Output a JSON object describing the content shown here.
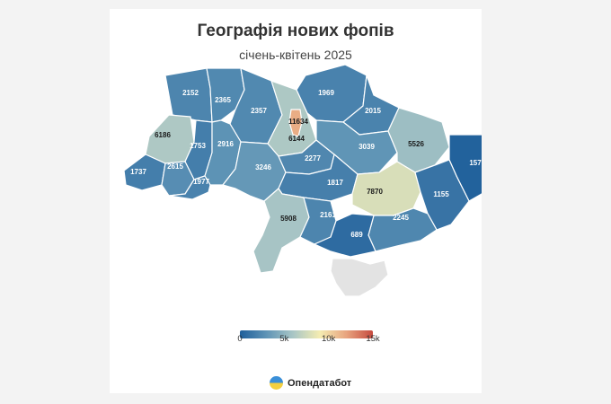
{
  "title": "Географія нових фопів",
  "subtitle": "січень-квітень 2025",
  "colors": {
    "scale": [
      "#1f5f9b",
      "#5f94b6",
      "#a9c6c5",
      "#f4ecb2",
      "#e8a47f",
      "#c64a3f"
    ],
    "no_data": "#e3e3e3",
    "background": "#f3f3f3"
  },
  "legend": {
    "min": 0,
    "max": 15000,
    "ticks": [
      {
        "value": 0,
        "label": "0"
      },
      {
        "value": 5000,
        "label": "5k"
      },
      {
        "value": 10000,
        "label": "10k"
      },
      {
        "value": 15000,
        "label": "15k"
      }
    ]
  },
  "regions": [
    {
      "id": "volyn",
      "value": 2152
    },
    {
      "id": "rivne",
      "value": 2365
    },
    {
      "id": "zhytomyr",
      "value": 2357
    },
    {
      "id": "kyiv-city",
      "value": 11634
    },
    {
      "id": "kyiv-oblast",
      "value": 6144
    },
    {
      "id": "chernihiv",
      "value": 1969
    },
    {
      "id": "sumy",
      "value": 2015
    },
    {
      "id": "lviv",
      "value": 6186
    },
    {
      "id": "ternopil",
      "value": 1753
    },
    {
      "id": "khmelnytskyi",
      "value": 2916
    },
    {
      "id": "vinnytsia",
      "value": 3246
    },
    {
      "id": "cherkasy",
      "value": 2277
    },
    {
      "id": "poltava",
      "value": 3039
    },
    {
      "id": "kharkiv",
      "value": 5526
    },
    {
      "id": "luhansk",
      "value": 157
    },
    {
      "id": "zakarpattia",
      "value": 1737
    },
    {
      "id": "ivano-frankivsk",
      "value": 2615
    },
    {
      "id": "chernivtsi",
      "value": 1977
    },
    {
      "id": "kirovohrad",
      "value": 1817
    },
    {
      "id": "dnipro",
      "value": 7870
    },
    {
      "id": "donetsk",
      "value": 1155
    },
    {
      "id": "odesa",
      "value": 5908
    },
    {
      "id": "mykolaiv",
      "value": 2161
    },
    {
      "id": "zaporizhzhia",
      "value": 2245
    },
    {
      "id": "kherson",
      "value": 689
    },
    {
      "id": "crimea",
      "value": null
    }
  ],
  "brand": {
    "name": "Опендатабот",
    "icon": "opendatabot-logo-icon"
  }
}
